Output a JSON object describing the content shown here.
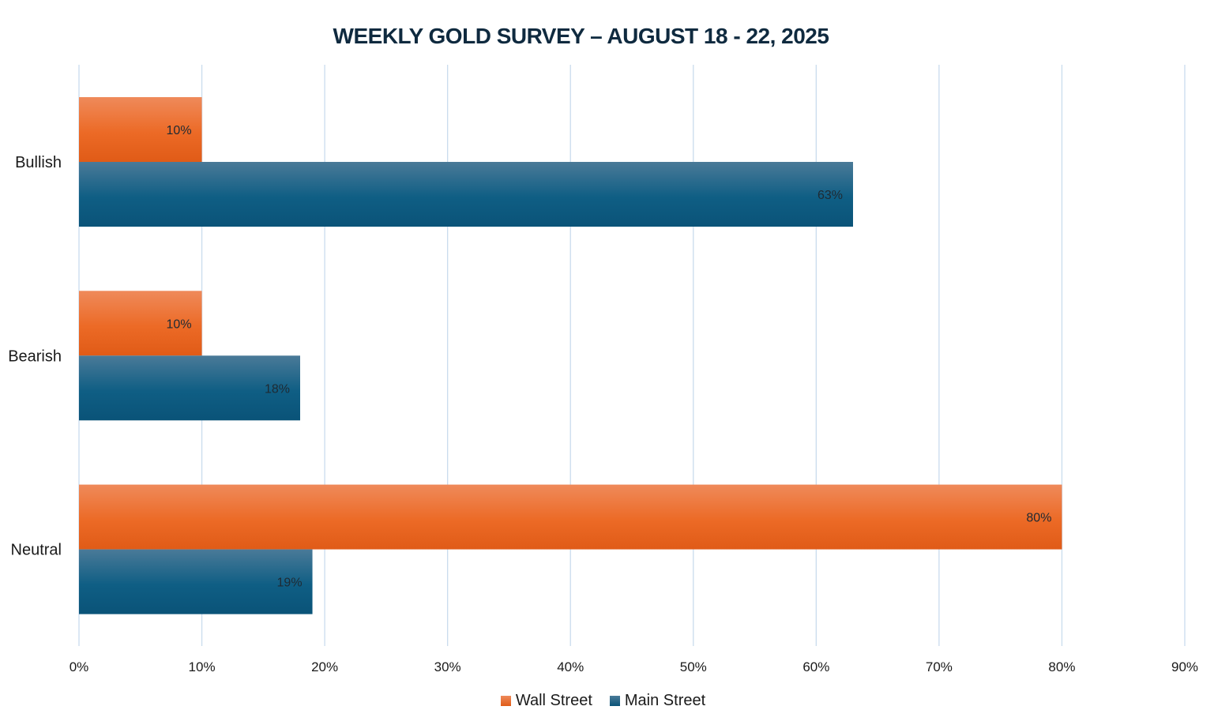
{
  "chart_data": {
    "type": "bar",
    "orientation": "horizontal",
    "title": "WEEKLY GOLD SURVEY – AUGUST 18  - 22, 2025",
    "categories": [
      "Bullish",
      "Bearish",
      "Neutral"
    ],
    "series": [
      {
        "name": "Wall Street",
        "values": [
          10,
          10,
          80
        ],
        "labels": [
          "10%",
          "10%",
          "80%"
        ],
        "color": "#e8631e"
      },
      {
        "name": "Main Street",
        "values": [
          63,
          18,
          19
        ],
        "labels": [
          "63%",
          "18%",
          "19%"
        ],
        "color": "#0d5a80"
      }
    ],
    "xlim": [
      0,
      90
    ],
    "x_ticks": [
      0,
      10,
      20,
      30,
      40,
      50,
      60,
      70,
      80,
      90
    ],
    "x_tick_labels": [
      "0%",
      "10%",
      "20%",
      "30%",
      "40%",
      "50%",
      "60%",
      "70%",
      "80%",
      "90%"
    ],
    "grid": true,
    "legend_position": "bottom"
  },
  "colors": {
    "wall_street": "#e8631e",
    "wall_street_light": "#ef8a5a",
    "main_street": "#0d5a80",
    "main_street_light": "#3f7596",
    "grid": "#c9dced",
    "title": "#0f2a3f"
  }
}
